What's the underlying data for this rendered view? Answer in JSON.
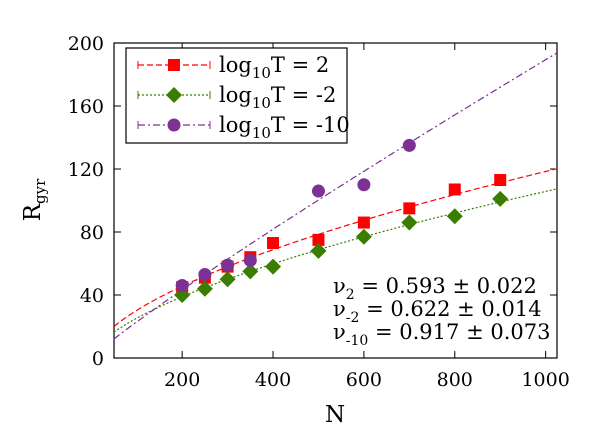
{
  "chart_data": {
    "type": "scatter",
    "title": "",
    "xlabel": "N",
    "ylabel": "R",
    "ylabel_sub": "gyr",
    "xlim": [
      50,
      1025
    ],
    "ylim": [
      0,
      200
    ],
    "x_ticks": [
      200,
      400,
      600,
      800,
      1000
    ],
    "y_ticks": [
      0,
      40,
      80,
      120,
      160,
      200
    ],
    "grid": false,
    "legend_position": "top-left",
    "series": [
      {
        "name_main": "log",
        "name_sub": "10",
        "name_rest": "T = 2",
        "color": "#ff0000",
        "marker": "square",
        "line_style": "dashed",
        "x": [
          200,
          250,
          300,
          350,
          400,
          500,
          600,
          700,
          800,
          900
        ],
        "y": [
          45,
          51,
          58,
          64,
          73,
          75,
          86,
          95,
          107,
          113
        ],
        "fit": {
          "exponent": 0.593,
          "prefactor": 1.97
        }
      },
      {
        "name_main": "log",
        "name_sub": "10",
        "name_rest": "T = -2",
        "color": "#3a7d00",
        "marker": "diamond",
        "line_style": "dotted",
        "x": [
          200,
          250,
          300,
          350,
          400,
          500,
          600,
          700,
          800,
          900
        ],
        "y": [
          40,
          44,
          50,
          55,
          58,
          68,
          77,
          86,
          90,
          101
        ],
        "fit": {
          "exponent": 0.622,
          "prefactor": 1.44
        }
      },
      {
        "name_main": "log",
        "name_sub": "10",
        "name_rest": "T = -10",
        "color": "#7b3294",
        "marker": "circle",
        "line_style": "dashdot",
        "x": [
          200,
          250,
          300,
          350,
          500,
          600,
          700
        ],
        "y": [
          46,
          53,
          59,
          62,
          106,
          110,
          135
        ],
        "fit": {
          "exponent": 0.917,
          "prefactor": 0.336
        }
      }
    ],
    "annotations": [
      {
        "sym": "ν",
        "sub": "2",
        "text": " = 0.593 ± 0.022"
      },
      {
        "sym": "ν",
        "sub": "-2",
        "text": " = 0.622 ± 0.014"
      },
      {
        "sym": "ν",
        "sub": "-10",
        "text": " = 0.917 ± 0.073"
      }
    ]
  }
}
